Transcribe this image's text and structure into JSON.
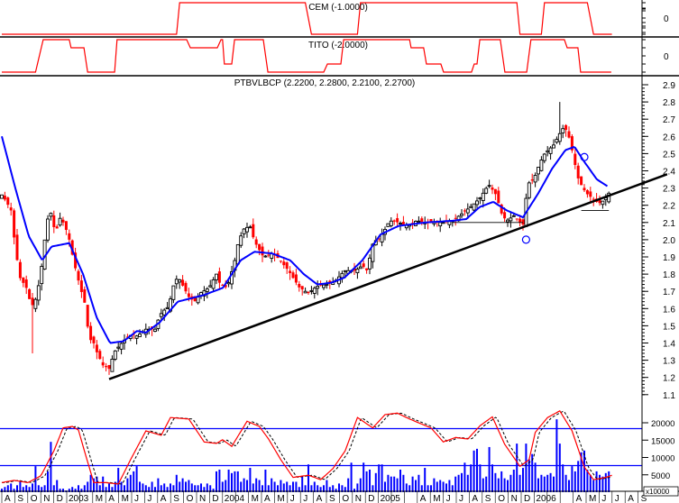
{
  "panels": {
    "cem": {
      "title": "CEM (-1.0000)",
      "axis_label": "0"
    },
    "tito": {
      "title": "TITO (-2.0000)",
      "axis_label": "0"
    },
    "price": {
      "title": "PTBVLBCP (2.2200, 2.2800, 2.2100, 2.2700)"
    },
    "volume": {
      "multiplier_label": "x10000"
    }
  },
  "colors": {
    "up": "#000000",
    "down": "#ff0000",
    "ma": "#0000ff",
    "indicator": "#ff0000",
    "volume": "#0000ff",
    "trend": "#000000"
  },
  "chart_data": {
    "type": "candlestick",
    "x_unit": "weeks since Aug 2002",
    "price_axis": {
      "min": 1.1,
      "max": 2.9,
      "step": 0.1,
      "ticks": [
        "2.9",
        "2.8",
        "2.7",
        "2.6",
        "2.5",
        "2.4",
        "2.3",
        "2.2",
        "2.1",
        "2.0",
        "1.9",
        "1.8",
        "1.7",
        "1.6",
        "1.5",
        "1.4",
        "1.3",
        "1.2",
        "1.1"
      ]
    },
    "last_ohlc": {
      "open": 2.22,
      "high": 2.28,
      "low": 2.21,
      "close": 2.27
    },
    "close_keypoints": [
      [
        0,
        2.26
      ],
      [
        1.5,
        2.22
      ],
      [
        3,
        2.17
      ],
      [
        4.4,
        1.95
      ],
      [
        5.9,
        1.78
      ],
      [
        8,
        1.72
      ],
      [
        9.7,
        1.61
      ],
      [
        11.2,
        1.66
      ],
      [
        12.4,
        1.77
      ],
      [
        13.2,
        1.87
      ],
      [
        14.7,
        2.11
      ],
      [
        16.2,
        2.16
      ],
      [
        17.4,
        2.03
      ],
      [
        19.1,
        2.13
      ],
      [
        20.6,
        2.08
      ],
      [
        22,
        2.0
      ],
      [
        23.5,
        1.87
      ],
      [
        25.6,
        1.72
      ],
      [
        27.4,
        1.61
      ],
      [
        28.5,
        1.4
      ],
      [
        29.4,
        1.43
      ],
      [
        30.9,
        1.35
      ],
      [
        33,
        1.27
      ],
      [
        35,
        1.25
      ],
      [
        36.8,
        1.35
      ],
      [
        38.2,
        1.38
      ],
      [
        40.6,
        1.43
      ],
      [
        42.6,
        1.45
      ],
      [
        44.1,
        1.44
      ],
      [
        47,
        1.48
      ],
      [
        50,
        1.48
      ],
      [
        51.5,
        1.56
      ],
      [
        52.9,
        1.59
      ],
      [
        54.4,
        1.61
      ],
      [
        56.5,
        1.77
      ],
      [
        57.9,
        1.77
      ],
      [
        59.4,
        1.72
      ],
      [
        61.2,
        1.66
      ],
      [
        63.2,
        1.64
      ],
      [
        64.7,
        1.69
      ],
      [
        67.6,
        1.72
      ],
      [
        70,
        1.8
      ],
      [
        71.2,
        1.74
      ],
      [
        73.5,
        1.72
      ],
      [
        75.9,
        1.87
      ],
      [
        77.1,
        1.98
      ],
      [
        78.8,
        2.06
      ],
      [
        80.9,
        2.08
      ],
      [
        82.4,
        1.99
      ],
      [
        85.3,
        1.9
      ],
      [
        88.2,
        1.92
      ],
      [
        89.7,
        1.9
      ],
      [
        93.5,
        1.82
      ],
      [
        97.1,
        1.72
      ],
      [
        100,
        1.69
      ],
      [
        102.9,
        1.73
      ],
      [
        105.9,
        1.74
      ],
      [
        108.8,
        1.76
      ],
      [
        111.8,
        1.82
      ],
      [
        115.3,
        1.82
      ],
      [
        117.6,
        1.85
      ],
      [
        119.1,
        1.82
      ],
      [
        121.2,
        1.99
      ],
      [
        122.9,
        2.0
      ],
      [
        125,
        2.06
      ],
      [
        126.5,
        2.11
      ],
      [
        129.4,
        2.1
      ],
      [
        132.4,
        2.08
      ],
      [
        135.3,
        2.11
      ],
      [
        138.2,
        2.1
      ],
      [
        141.2,
        2.1
      ],
      [
        144.1,
        2.1
      ],
      [
        147.1,
        2.11
      ],
      [
        152.9,
        2.19
      ],
      [
        155.9,
        2.24
      ],
      [
        158.8,
        2.32
      ],
      [
        161.2,
        2.26
      ],
      [
        163.2,
        2.14
      ],
      [
        164.7,
        2.11
      ],
      [
        167.1,
        2.14
      ],
      [
        169.1,
        2.1
      ],
      [
        170.6,
        2.08
      ],
      [
        171.2,
        2.32
      ],
      [
        173.5,
        2.35
      ],
      [
        175.6,
        2.45
      ],
      [
        177.1,
        2.5
      ],
      [
        178.8,
        2.53
      ],
      [
        180,
        2.55
      ],
      [
        181.8,
        2.61
      ],
      [
        183.5,
        2.66
      ],
      [
        185.3,
        2.58
      ],
      [
        186.8,
        2.45
      ],
      [
        188.2,
        2.34
      ],
      [
        190.6,
        2.27
      ],
      [
        192.6,
        2.24
      ],
      [
        194.7,
        2.21
      ],
      [
        196.5,
        2.23
      ],
      [
        198,
        2.27
      ]
    ],
    "extreme_wicks": [
      [
        10,
        1.34
      ],
      [
        182,
        2.8
      ]
    ],
    "moving_average": [
      [
        0,
        2.6
      ],
      [
        4.4,
        2.3
      ],
      [
        8.8,
        2.02
      ],
      [
        13.2,
        1.88
      ],
      [
        16.2,
        1.96
      ],
      [
        19.1,
        1.97
      ],
      [
        22,
        1.98
      ],
      [
        26.5,
        1.8
      ],
      [
        30.9,
        1.55
      ],
      [
        35.3,
        1.4
      ],
      [
        39.7,
        1.41
      ],
      [
        44.1,
        1.47
      ],
      [
        47,
        1.46
      ],
      [
        51.5,
        1.52
      ],
      [
        57.4,
        1.64
      ],
      [
        61.8,
        1.66
      ],
      [
        66.2,
        1.68
      ],
      [
        69.1,
        1.7
      ],
      [
        72.1,
        1.72
      ],
      [
        75,
        1.8
      ],
      [
        77.9,
        1.88
      ],
      [
        82.4,
        1.93
      ],
      [
        88.2,
        1.92
      ],
      [
        94.1,
        1.88
      ],
      [
        98.5,
        1.8
      ],
      [
        102.9,
        1.74
      ],
      [
        107.4,
        1.75
      ],
      [
        111.8,
        1.78
      ],
      [
        117.6,
        1.88
      ],
      [
        123.5,
        2.03
      ],
      [
        129.4,
        2.08
      ],
      [
        138.2,
        2.1
      ],
      [
        147.1,
        2.11
      ],
      [
        151.5,
        2.12
      ],
      [
        155.9,
        2.19
      ],
      [
        160.3,
        2.22
      ],
      [
        164.7,
        2.17
      ],
      [
        170,
        2.13
      ],
      [
        175,
        2.27
      ],
      [
        179.4,
        2.41
      ],
      [
        183.8,
        2.52
      ],
      [
        186.8,
        2.54
      ],
      [
        189.7,
        2.46
      ],
      [
        194.1,
        2.35
      ],
      [
        197.6,
        2.31
      ]
    ],
    "trendline": [
      [
        35,
        1.19
      ],
      [
        217,
        2.38
      ]
    ],
    "support_lines": [
      [
        [
          147,
          2.1
        ],
        [
          170,
          2.1
        ]
      ],
      [
        [
          189,
          2.17
        ],
        [
          198,
          2.17
        ]
      ]
    ],
    "markers": [
      [
        171,
        2.0
      ],
      [
        190,
        2.48
      ]
    ],
    "volume_axis": {
      "ticks": [
        "20000",
        "15000",
        "10000",
        "5000"
      ],
      "values_thousands": [
        20,
        15,
        10,
        5
      ]
    },
    "volume_thousands": [
      1,
      1.5,
      2,
      2.5,
      1,
      2,
      3,
      1.5,
      2,
      1.5,
      2.5,
      7.5,
      2,
      1.5,
      2,
      6,
      14.5,
      2,
      3.5,
      1,
      1,
      0.5,
      1,
      1.5,
      1,
      2,
      1,
      2,
      3,
      5,
      4,
      4.5,
      2,
      4.5,
      1.5,
      2.5,
      1.5,
      3,
      7,
      3,
      2,
      4,
      5,
      6,
      7.5,
      3,
      2.5,
      2,
      1.5,
      3,
      1.5,
      4,
      2,
      2.5,
      1.5,
      2.5,
      2,
      5,
      3,
      4,
      3,
      3.5,
      2.5,
      2,
      2,
      2.5,
      1.5,
      2.5,
      2,
      1,
      6,
      6.5,
      3,
      3.5,
      6.5,
      5.5,
      6,
      6,
      3,
      4,
      3.5,
      7,
      2.5,
      4,
      3.5,
      2,
      6.5,
      2,
      4,
      3,
      2,
      3.5,
      2.5,
      3,
      2,
      3,
      3,
      1.5,
      4.5,
      2,
      8,
      2,
      3,
      2,
      1.5,
      2,
      3.5,
      1.5,
      2,
      1,
      2.5,
      2,
      1.5,
      4,
      8.5,
      1,
      2.5,
      4,
      8.5,
      6,
      6.5,
      2,
      5.5,
      8,
      8,
      3,
      5,
      4.5,
      4.5,
      4,
      6.5,
      5,
      2.5,
      2,
      4.5,
      3.5,
      5,
      2,
      7,
      2,
      2,
      4,
      3,
      3.5,
      3,
      2.5,
      3.5,
      2,
      4.5,
      5,
      5.5,
      8.5,
      5,
      8,
      12,
      12.5,
      8,
      4,
      4.5,
      13,
      8,
      5.5,
      4,
      6,
      4,
      3.5,
      5,
      6.5,
      14,
      5,
      7,
      14,
      9.5,
      11,
      8.5,
      4,
      5,
      4.5,
      5,
      5.5,
      4.5,
      21,
      14,
      8,
      5,
      3.5,
      7.5,
      6,
      9,
      11.5,
      12,
      6.5,
      5,
      3.5,
      6,
      5,
      4.5,
      5.5,
      6
    ],
    "oscillator": {
      "levels": [
        75,
        25
      ],
      "weeks": [
        0,
        4,
        8.5,
        12.7,
        17,
        20,
        23,
        25,
        27.5,
        30,
        34,
        38,
        42,
        47,
        52,
        55,
        61,
        66,
        70,
        72,
        75,
        80,
        84,
        87,
        91,
        95,
        100,
        104,
        108,
        112,
        116,
        121,
        125,
        129,
        133,
        140,
        144,
        148,
        152,
        156,
        160,
        164,
        169,
        172,
        174,
        178,
        182,
        186,
        190,
        193,
        197,
        199
      ],
      "values": [
        2,
        5,
        2,
        11,
        45,
        76,
        78,
        73,
        37,
        2,
        2,
        0,
        33,
        72,
        66,
        90,
        88,
        57,
        55,
        60,
        51,
        85,
        78,
        61,
        33,
        9,
        12,
        6,
        21,
        45,
        90,
        76,
        94,
        96,
        88,
        76,
        57,
        63,
        61,
        79,
        91,
        54,
        24,
        33,
        70,
        90,
        99,
        72,
        23,
        6,
        9,
        12
      ]
    },
    "cem_steps": [
      [
        0,
        -1
      ],
      [
        57,
        -1
      ],
      [
        58,
        1
      ],
      [
        99,
        1
      ],
      [
        101,
        -1
      ],
      [
        116,
        -1
      ],
      [
        117,
        1
      ],
      [
        168,
        1
      ],
      [
        169,
        -1
      ],
      [
        176,
        -1
      ],
      [
        177,
        1
      ],
      [
        191,
        1
      ],
      [
        193,
        -1
      ],
      [
        199,
        -1
      ]
    ],
    "tito_steps": [
      [
        0,
        -2
      ],
      [
        11,
        -2
      ],
      [
        13.5,
        2
      ],
      [
        22,
        2
      ],
      [
        22.6,
        1
      ],
      [
        26.8,
        1
      ],
      [
        28,
        -2
      ],
      [
        36.8,
        -2
      ],
      [
        37.6,
        2
      ],
      [
        60.3,
        2
      ],
      [
        61.5,
        1
      ],
      [
        70.3,
        1
      ],
      [
        71.5,
        2
      ],
      [
        72,
        2
      ],
      [
        72.6,
        -1
      ],
      [
        75,
        -1
      ],
      [
        75.9,
        2
      ],
      [
        85.3,
        2
      ],
      [
        86.8,
        -2
      ],
      [
        105,
        -2
      ],
      [
        106.2,
        -1
      ],
      [
        110.6,
        -1
      ],
      [
        111.5,
        2
      ],
      [
        133,
        2
      ],
      [
        133.5,
        1
      ],
      [
        137.6,
        1
      ],
      [
        138.5,
        -1
      ],
      [
        143.2,
        -1
      ],
      [
        144.1,
        -2
      ],
      [
        153.2,
        -2
      ],
      [
        154.1,
        -1
      ],
      [
        155,
        -1
      ],
      [
        155.9,
        2
      ],
      [
        162.6,
        2
      ],
      [
        164.1,
        -2
      ],
      [
        171.2,
        -2
      ],
      [
        172.6,
        2
      ],
      [
        183.5,
        2
      ],
      [
        184.4,
        1
      ],
      [
        187.9,
        1
      ],
      [
        188.8,
        -2
      ],
      [
        198.8,
        -2
      ]
    ],
    "x_axis_months": [
      "A",
      "S",
      "O",
      "N",
      "D",
      "2003",
      "",
      "M",
      "A",
      "M",
      "J",
      "J",
      "A",
      "S",
      "O",
      "N",
      "D",
      "2004",
      "",
      "M",
      "A",
      "M",
      "J",
      "J",
      "A",
      "S",
      "O",
      "N",
      "D",
      "2005",
      "",
      "",
      "A",
      "M",
      "J",
      "J",
      "A",
      "S",
      "O",
      "N",
      "D",
      "2006",
      "",
      "",
      "A",
      "M",
      "J",
      "J",
      "A",
      "S"
    ]
  }
}
